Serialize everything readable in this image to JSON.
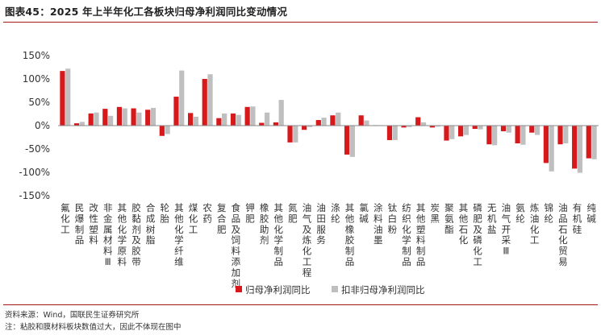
{
  "header": {
    "title": "图表45：2025 年上半年化工各板块归母净利润同比变动情况"
  },
  "footer": {
    "source": "资料来源：Wind，国联民生证券研究所",
    "note": "注：粘胶和膜材料板块数值过大，因此不体现在图中"
  },
  "colors": {
    "series1": "#d7191c",
    "series2": "#bfbfbf",
    "rule": "#a11a1a"
  },
  "chart_data": {
    "type": "bar",
    "ylim": [
      -150,
      150
    ],
    "yticks": [
      -150,
      -100,
      -50,
      0,
      50,
      100,
      150
    ],
    "ytick_labels": [
      "-150%",
      "-100%",
      "-50%",
      "0%",
      "50%",
      "100%",
      "150%"
    ],
    "grid": false,
    "legend_position": "bottom",
    "categories": [
      "氟化工",
      "民爆制品",
      "改性塑料",
      "非金属材料Ⅲ",
      "其他化学原料",
      "胶黏剂及胶带",
      "合成树脂",
      "轮胎",
      "其他化学纤维",
      "煤化工",
      "农药",
      "复合肥",
      "食品及饲料添加剂",
      "钾肥",
      "橡胶助剂",
      "其他化学制品",
      "氮肥",
      "油气及炼化工程",
      "油田服务",
      "涤纶",
      "其他橡胶制品",
      "氯碱",
      "涂料油墨",
      "钛白粉",
      "纺织化学制品",
      "其他塑料制品",
      "炭黑",
      "聚氨酯",
      "其他石化",
      "磷肥及磷化工",
      "无机盐",
      "油气开采Ⅲ",
      "氨纶",
      "炼油化工",
      "锦纶",
      "油品石化贸易",
      "有机硅",
      "纯碱"
    ],
    "series": [
      {
        "name": "归母净利润同比",
        "values": [
          117,
          5,
          26,
          36,
          40,
          37,
          34,
          -22,
          62,
          27,
          100,
          16,
          26,
          40,
          6,
          7,
          -36,
          -9,
          12,
          22,
          -62,
          22,
          1,
          -31,
          -4,
          18,
          -4,
          -32,
          -23,
          -7,
          -40,
          -12,
          -38,
          -15,
          -80,
          -40,
          -92,
          -70
        ]
      },
      {
        "name": "扣非归母净利润同比",
        "values": [
          122,
          8,
          28,
          21,
          37,
          28,
          38,
          -18,
          118,
          19,
          110,
          26,
          23,
          41,
          28,
          55,
          -36,
          -3,
          17,
          28,
          -67,
          11,
          1,
          -31,
          -3,
          7,
          -2,
          -29,
          -20,
          -8,
          -42,
          -15,
          -41,
          -20,
          -98,
          -38,
          -101,
          -72
        ]
      }
    ]
  }
}
